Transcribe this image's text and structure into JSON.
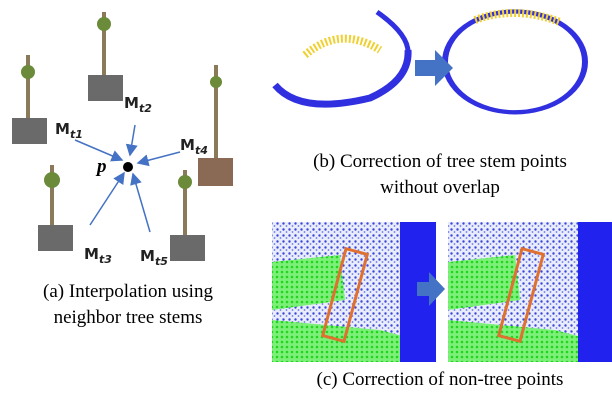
{
  "panel_a": {
    "point": "p",
    "labels": [
      {
        "base": "M",
        "sub": "t1"
      },
      {
        "base": "M",
        "sub": "t2"
      },
      {
        "base": "M",
        "sub": "t3"
      },
      {
        "base": "M",
        "sub": "t4"
      },
      {
        "base": "M",
        "sub": "t5"
      }
    ],
    "caption": [
      "(a) Interpolation using",
      "neighbor tree stems"
    ]
  },
  "panel_b": {
    "caption": [
      "(b) Correction of tree stem points",
      "without overlap"
    ]
  },
  "panel_c": {
    "caption": [
      "(c) Correction of non-tree points"
    ]
  }
}
